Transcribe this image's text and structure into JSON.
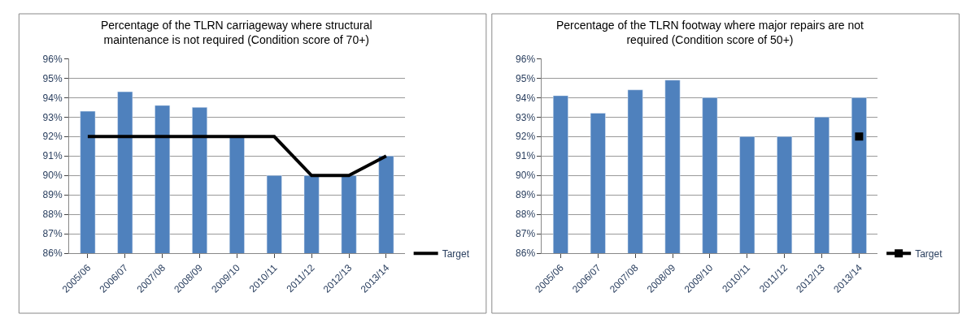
{
  "chart_data": [
    {
      "type": "bar",
      "title": "Percentage of the TLRN carriageway where structural\nmaintenance is not required (Condition score of 70+)",
      "categories": [
        "2005/06",
        "2006/07",
        "2007/08",
        "2008/09",
        "2009/10",
        "2010/11",
        "2011/12",
        "2012/13",
        "2013/14"
      ],
      "series": [
        {
          "color": "#4f81bd",
          "values": [
            93.3,
            94.3,
            93.6,
            93.5,
            92,
            90,
            90,
            90,
            91
          ]
        },
        {
          "name": "Target",
          "type": "line",
          "color": "#000000",
          "marker": "none",
          "values": [
            92,
            92,
            92,
            92,
            92,
            92,
            90,
            90,
            91
          ]
        }
      ],
      "ylim": [
        86,
        96
      ],
      "yticks": [
        {
          "value": 86,
          "label": "86%"
        },
        {
          "value": 87,
          "label": "87%"
        },
        {
          "value": 88,
          "label": "88%"
        },
        {
          "value": 89,
          "label": "89%"
        },
        {
          "value": 90,
          "label": "90%"
        },
        {
          "value": 91,
          "label": "91%"
        },
        {
          "value": 92,
          "label": "92%"
        },
        {
          "value": 93,
          "label": "93%"
        },
        {
          "value": 94,
          "label": "94%"
        },
        {
          "value": 95,
          "label": "95%"
        },
        {
          "value": 96,
          "label": "96%"
        }
      ],
      "grid": "y",
      "legend": "bottom right"
    },
    {
      "type": "bar",
      "title": "Percentage of the TLRN footway where major repairs are not\nrequired (Condition score of 50+)",
      "categories": [
        "2005/06",
        "2006/07",
        "2007/08",
        "2008/09",
        "2009/10",
        "2010/11",
        "2011/12",
        "2012/13",
        "2013/14"
      ],
      "series": [
        {
          "color": "#4f81bd",
          "values": [
            94.1,
            93.2,
            94.4,
            94.9,
            94,
            92,
            92,
            93,
            94
          ]
        },
        {
          "name": "Target",
          "type": "line",
          "color": "#000000",
          "marker": "square",
          "values": [
            null,
            null,
            null,
            null,
            null,
            null,
            null,
            null,
            92
          ]
        }
      ],
      "ylim": [
        86,
        96
      ],
      "yticks": [
        {
          "value": 86,
          "label": "86%"
        },
        {
          "value": 87,
          "label": "87%"
        },
        {
          "value": 88,
          "label": "88%"
        },
        {
          "value": 89,
          "label": "89%"
        },
        {
          "value": 90,
          "label": "90%"
        },
        {
          "value": 91,
          "label": "91%"
        },
        {
          "value": 92,
          "label": "92%"
        },
        {
          "value": 93,
          "label": "93%"
        },
        {
          "value": 94,
          "label": "94%"
        },
        {
          "value": 95,
          "label": "95%"
        },
        {
          "value": 96,
          "label": "96%"
        }
      ],
      "grid": "y",
      "legend": "bottom right"
    }
  ]
}
